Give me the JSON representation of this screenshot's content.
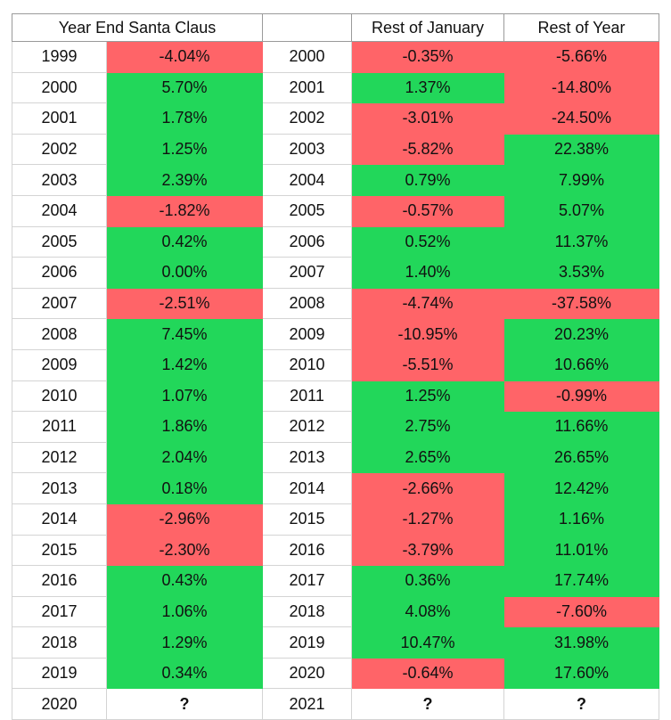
{
  "headers": {
    "santa": "Year End Santa Claus",
    "blank": "",
    "january": "Rest of January",
    "rest_year": "Rest of Year"
  },
  "colors": {
    "positive": "#22d75a",
    "negative": "#ff6468",
    "unknown": "#ffffff"
  },
  "rows": [
    {
      "year": "1999",
      "santa": "-4.04%",
      "next_year": "2000",
      "january": "-0.35%",
      "rest_year": "-5.66%"
    },
    {
      "year": "2000",
      "santa": "5.70%",
      "next_year": "2001",
      "january": "1.37%",
      "rest_year": "-14.80%"
    },
    {
      "year": "2001",
      "santa": "1.78%",
      "next_year": "2002",
      "january": "-3.01%",
      "rest_year": "-24.50%"
    },
    {
      "year": "2002",
      "santa": "1.25%",
      "next_year": "2003",
      "january": "-5.82%",
      "rest_year": "22.38%"
    },
    {
      "year": "2003",
      "santa": "2.39%",
      "next_year": "2004",
      "january": "0.79%",
      "rest_year": "7.99%"
    },
    {
      "year": "2004",
      "santa": "-1.82%",
      "next_year": "2005",
      "january": "-0.57%",
      "rest_year": "5.07%"
    },
    {
      "year": "2005",
      "santa": "0.42%",
      "next_year": "2006",
      "january": "0.52%",
      "rest_year": "11.37%"
    },
    {
      "year": "2006",
      "santa": "0.00%",
      "next_year": "2007",
      "january": "1.40%",
      "rest_year": "3.53%"
    },
    {
      "year": "2007",
      "santa": "-2.51%",
      "next_year": "2008",
      "january": "-4.74%",
      "rest_year": "-37.58%"
    },
    {
      "year": "2008",
      "santa": "7.45%",
      "next_year": "2009",
      "january": "-10.95%",
      "rest_year": "20.23%"
    },
    {
      "year": "2009",
      "santa": "1.42%",
      "next_year": "2010",
      "january": "-5.51%",
      "rest_year": "10.66%"
    },
    {
      "year": "2010",
      "santa": "1.07%",
      "next_year": "2011",
      "january": "1.25%",
      "rest_year": "-0.99%"
    },
    {
      "year": "2011",
      "santa": "1.86%",
      "next_year": "2012",
      "january": "2.75%",
      "rest_year": "11.66%"
    },
    {
      "year": "2012",
      "santa": "2.04%",
      "next_year": "2013",
      "january": "2.65%",
      "rest_year": "26.65%"
    },
    {
      "year": "2013",
      "santa": "0.18%",
      "next_year": "2014",
      "january": "-2.66%",
      "rest_year": "12.42%"
    },
    {
      "year": "2014",
      "santa": "-2.96%",
      "next_year": "2015",
      "january": "-1.27%",
      "rest_year": "1.16%"
    },
    {
      "year": "2015",
      "santa": "-2.30%",
      "next_year": "2016",
      "january": "-3.79%",
      "rest_year": "11.01%"
    },
    {
      "year": "2016",
      "santa": "0.43%",
      "next_year": "2017",
      "january": "0.36%",
      "rest_year": "17.74%"
    },
    {
      "year": "2017",
      "santa": "1.06%",
      "next_year": "2018",
      "january": "4.08%",
      "rest_year": "-7.60%"
    },
    {
      "year": "2018",
      "santa": "1.29%",
      "next_year": "2019",
      "january": "10.47%",
      "rest_year": "31.98%"
    },
    {
      "year": "2019",
      "santa": "0.34%",
      "next_year": "2020",
      "january": "-0.64%",
      "rest_year": "17.60%"
    },
    {
      "year": "2020",
      "santa": "?",
      "next_year": "2021",
      "january": "?",
      "rest_year": "?"
    }
  ]
}
